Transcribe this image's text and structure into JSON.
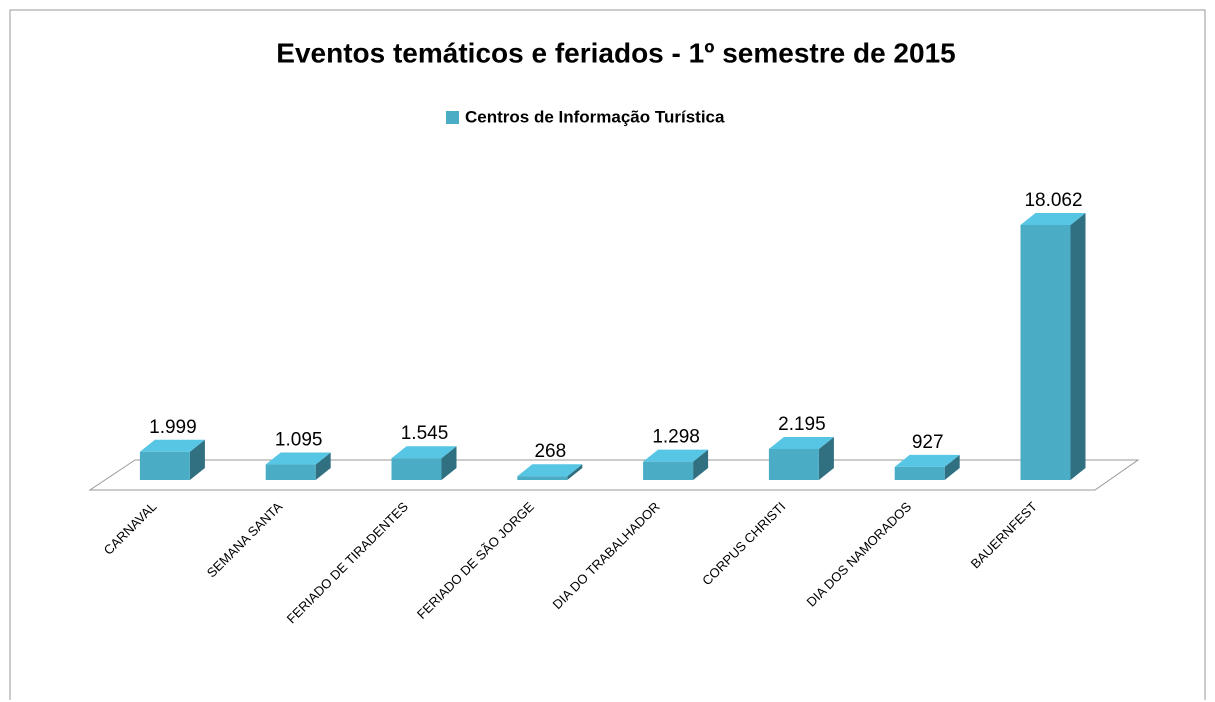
{
  "chart_data": {
    "type": "bar3d",
    "title": "Eventos temáticos e feriados - 1º semestre de 2015",
    "categories": [
      "CARNAVAL",
      "SEMANA SANTA",
      "FERIADO DE TIRADENTES",
      "FERIADO DE SÃO JORGE",
      "DIA DO TRABALHADOR",
      "CORPUS CHRISTI",
      "DIA DOS NAMORADOS",
      "BAUERNFEST"
    ],
    "series": [
      {
        "name": "Centros de Informação Turística",
        "color": "#4bacc6",
        "values": [
          1999,
          1095,
          1545,
          268,
          1298,
          2195,
          927,
          18062
        ],
        "value_labels": [
          "1.999",
          "1.095",
          "1.545",
          "268",
          "1.298",
          "2.195",
          "927",
          "18.062"
        ]
      }
    ],
    "legend": "top"
  }
}
